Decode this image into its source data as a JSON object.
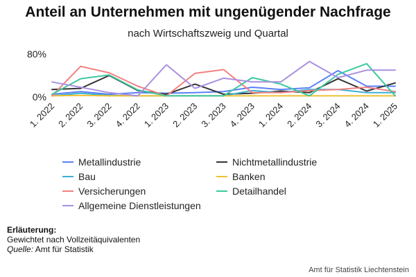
{
  "chart_data": {
    "type": "line",
    "title": "Anteil an Unternehmen mit ungenügender Nachfrage",
    "subtitle": "nach Wirtschaftszweig und Quartal",
    "xlabel": "",
    "ylabel": "",
    "ylim": [
      0,
      80
    ],
    "y_ticks": [
      "0%",
      "80%"
    ],
    "y_tick_values": [
      0,
      80
    ],
    "grid": false,
    "legend_position": "bottom",
    "categories": [
      "1. 2022",
      "2. 2022",
      "3. 2022",
      "4. 2022",
      "1. 2023",
      "2. 2023",
      "3. 2023",
      "4. 2023",
      "1. 2024",
      "2. 2024",
      "3. 2024",
      "4. 2024",
      "1. 2025"
    ],
    "series": [
      {
        "name": "Metallindustrie",
        "color": "#5b7ff5",
        "values": [
          5,
          10,
          5,
          8,
          7,
          8,
          10,
          18,
          14,
          17,
          49,
          20,
          20
        ]
      },
      {
        "name": "Nichtmetallindustrie",
        "color": "#333333",
        "values": [
          14,
          16,
          40,
          12,
          5,
          24,
          5,
          7,
          11,
          8,
          34,
          11,
          26
        ]
      },
      {
        "name": "Bau",
        "color": "#3ab0d0",
        "values": [
          2,
          7,
          3,
          2,
          2,
          2,
          2,
          12,
          8,
          14,
          14,
          8,
          8
        ]
      },
      {
        "name": "Banken",
        "color": "#f0c030",
        "values": [
          2,
          3,
          2,
          2,
          2,
          2,
          2,
          2,
          2,
          2,
          2,
          2,
          2
        ]
      },
      {
        "name": "Versicherungen",
        "color": "#f28080",
        "values": [
          2,
          57,
          45,
          20,
          2,
          44,
          51,
          8,
          8,
          12,
          14,
          18,
          10
        ]
      },
      {
        "name": "Detailhandel",
        "color": "#3cc8a0",
        "values": [
          5,
          34,
          41,
          13,
          2,
          2,
          2,
          36,
          24,
          2,
          42,
          62,
          2
        ]
      },
      {
        "name": "Allgemeine Dienstleistungen",
        "color": "#a890e0",
        "values": [
          28,
          18,
          8,
          2,
          60,
          16,
          35,
          28,
          28,
          66,
          36,
          50,
          50
        ]
      }
    ]
  },
  "notes": {
    "heading": "Erläuterung:",
    "text": "Gewichtet nach Vollzeitäquivalenten",
    "source_label": "Quelle:",
    "source_text": "Amt für Statistik"
  },
  "footer": "Amt für Statistik Liechtenstein"
}
